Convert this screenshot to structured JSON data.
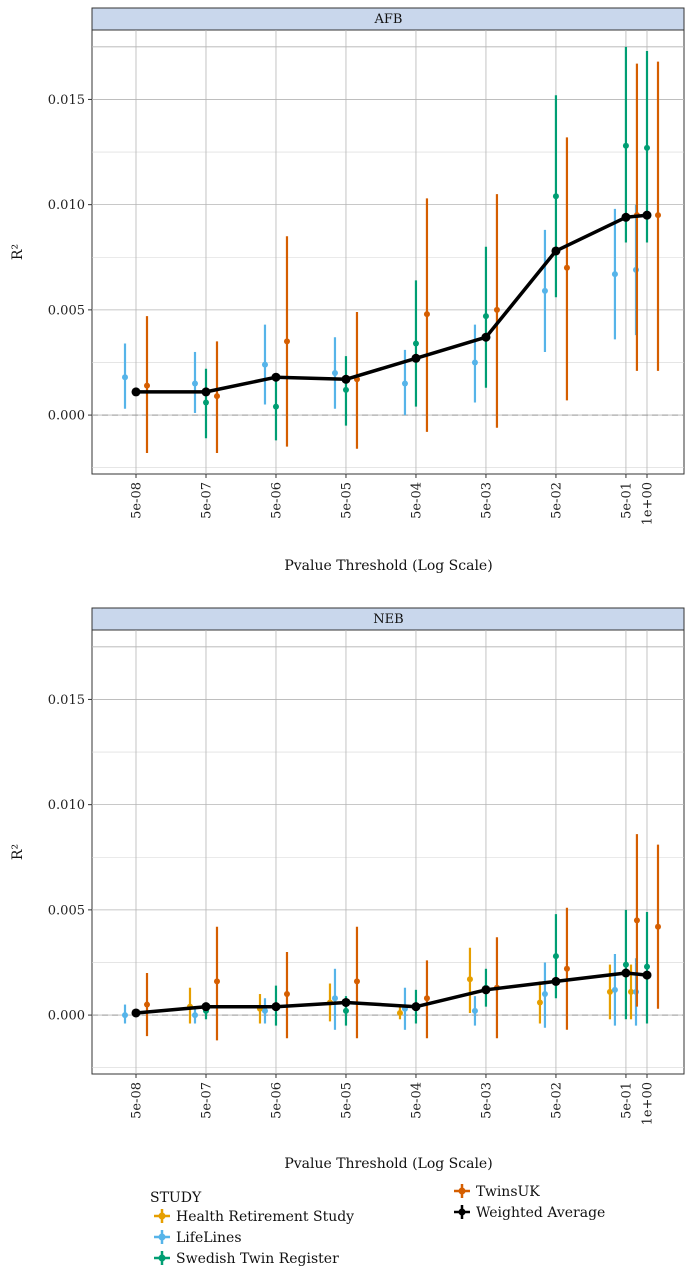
{
  "legend": {
    "title": "STUDY",
    "items": [
      {
        "label": "Health Retirement Study",
        "color": "#E69F00"
      },
      {
        "label": "LifeLines",
        "color": "#56B4E9"
      },
      {
        "label": "Swedish Twin Register",
        "color": "#009E73"
      },
      {
        "label": "TwinsUK",
        "color": "#D55E00"
      },
      {
        "label": "Weighted Average",
        "color": "#000000"
      }
    ]
  },
  "chart_data": [
    {
      "type": "line",
      "panel": "AFB",
      "xlabel": "Pvalue Threshold (Log Scale)",
      "ylabel": "R²",
      "x_scale": "log",
      "x_ticks": [
        "5e-08",
        "5e-07",
        "5e-06",
        "5e-05",
        "5e-04",
        "5e-03",
        "5e-02",
        "5e-01",
        "1e+00"
      ],
      "x_tick_values": [
        5e-08,
        5e-07,
        5e-06,
        5e-05,
        0.0005,
        0.005,
        0.05,
        0.5,
        1
      ],
      "y_ticks": [
        "0.000",
        "0.005",
        "0.010",
        "0.015"
      ],
      "y_tick_values": [
        0,
        0.005,
        0.01,
        0.015
      ],
      "ylim": [
        -0.0028,
        0.0183
      ],
      "grid": true,
      "series": [
        {
          "name": "LifeLines",
          "color": "#56B4E9",
          "points": [
            {
              "x": 5e-08,
              "y": 0.0018,
              "lo": 0.0003,
              "hi": 0.0034
            },
            {
              "x": 5e-07,
              "y": 0.0015,
              "lo": 0.0001,
              "hi": 0.003
            },
            {
              "x": 5e-06,
              "y": 0.0024,
              "lo": 0.0005,
              "hi": 0.0043
            },
            {
              "x": 5e-05,
              "y": 0.002,
              "lo": 0.0003,
              "hi": 0.0037
            },
            {
              "x": 0.0005,
              "y": 0.0015,
              "lo": 0.0,
              "hi": 0.0031
            },
            {
              "x": 0.005,
              "y": 0.0025,
              "lo": 0.0006,
              "hi": 0.0043
            },
            {
              "x": 0.05,
              "y": 0.0059,
              "lo": 0.003,
              "hi": 0.0088
            },
            {
              "x": 0.5,
              "y": 0.0067,
              "lo": 0.0036,
              "hi": 0.0098
            },
            {
              "x": 1,
              "y": 0.0069,
              "lo": 0.0038,
              "hi": 0.01
            }
          ]
        },
        {
          "name": "Swedish Twin Register",
          "color": "#009E73",
          "points": [
            {
              "x": 5e-07,
              "y": 0.0006,
              "lo": -0.0011,
              "hi": 0.0022
            },
            {
              "x": 5e-06,
              "y": 0.0004,
              "lo": -0.0012,
              "hi": 0.002
            },
            {
              "x": 5e-05,
              "y": 0.0012,
              "lo": -0.0005,
              "hi": 0.0028
            },
            {
              "x": 0.0005,
              "y": 0.0034,
              "lo": 0.0004,
              "hi": 0.0064
            },
            {
              "x": 0.005,
              "y": 0.0047,
              "lo": 0.0013,
              "hi": 0.008
            },
            {
              "x": 0.05,
              "y": 0.0104,
              "lo": 0.0056,
              "hi": 0.0152
            },
            {
              "x": 0.5,
              "y": 0.0128,
              "lo": 0.0082,
              "hi": 0.0175
            },
            {
              "x": 1,
              "y": 0.0127,
              "lo": 0.0082,
              "hi": 0.0173
            }
          ]
        },
        {
          "name": "TwinsUK",
          "color": "#D55E00",
          "points": [
            {
              "x": 5e-08,
              "y": 0.0014,
              "lo": -0.0018,
              "hi": 0.0047
            },
            {
              "x": 5e-07,
              "y": 0.0009,
              "lo": -0.0018,
              "hi": 0.0035
            },
            {
              "x": 5e-06,
              "y": 0.0035,
              "lo": -0.0015,
              "hi": 0.0085
            },
            {
              "x": 5e-05,
              "y": 0.0017,
              "lo": -0.0016,
              "hi": 0.0049
            },
            {
              "x": 0.0005,
              "y": 0.0048,
              "lo": -0.0008,
              "hi": 0.0103
            },
            {
              "x": 0.005,
              "y": 0.005,
              "lo": -0.0006,
              "hi": 0.0105
            },
            {
              "x": 0.05,
              "y": 0.007,
              "lo": 0.0007,
              "hi": 0.0132
            },
            {
              "x": 0.5,
              "y": 0.0095,
              "lo": 0.0021,
              "hi": 0.0167
            },
            {
              "x": 1,
              "y": 0.0095,
              "lo": 0.0021,
              "hi": 0.0168
            }
          ]
        },
        {
          "name": "Weighted Average",
          "color": "#000000",
          "points": [
            {
              "x": 5e-08,
              "y": 0.0011
            },
            {
              "x": 5e-07,
              "y": 0.0011
            },
            {
              "x": 5e-06,
              "y": 0.0018
            },
            {
              "x": 5e-05,
              "y": 0.0017
            },
            {
              "x": 0.0005,
              "y": 0.0027
            },
            {
              "x": 0.005,
              "y": 0.0037
            },
            {
              "x": 0.05,
              "y": 0.0078
            },
            {
              "x": 0.5,
              "y": 0.0094
            },
            {
              "x": 1,
              "y": 0.0095
            }
          ]
        }
      ]
    },
    {
      "type": "line",
      "panel": "NEB",
      "xlabel": "Pvalue Threshold (Log Scale)",
      "ylabel": "R²",
      "x_scale": "log",
      "x_ticks": [
        "5e-08",
        "5e-07",
        "5e-06",
        "5e-05",
        "5e-04",
        "5e-03",
        "5e-02",
        "5e-01",
        "1e+00"
      ],
      "x_tick_values": [
        5e-08,
        5e-07,
        5e-06,
        5e-05,
        0.0005,
        0.005,
        0.05,
        0.5,
        1
      ],
      "y_ticks": [
        "0.000",
        "0.005",
        "0.010",
        "0.015"
      ],
      "y_tick_values": [
        0,
        0.005,
        0.01,
        0.015
      ],
      "ylim": [
        -0.0028,
        0.0183
      ],
      "grid": true,
      "series": [
        {
          "name": "Health Retirement Study",
          "color": "#E69F00",
          "points": [
            {
              "x": 5e-07,
              "y": 0.0004,
              "lo": -0.0004,
              "hi": 0.0013
            },
            {
              "x": 5e-06,
              "y": 0.0003,
              "lo": -0.0004,
              "hi": 0.001
            },
            {
              "x": 5e-05,
              "y": 0.0006,
              "lo": -0.0003,
              "hi": 0.0015
            },
            {
              "x": 0.0005,
              "y": 0.0001,
              "lo": -0.0002,
              "hi": 0.0004
            },
            {
              "x": 0.005,
              "y": 0.0017,
              "lo": 0.0001,
              "hi": 0.0032
            },
            {
              "x": 0.05,
              "y": 0.0006,
              "lo": -0.0004,
              "hi": 0.0016
            },
            {
              "x": 0.5,
              "y": 0.0011,
              "lo": -0.0002,
              "hi": 0.0024
            },
            {
              "x": 1,
              "y": 0.0011,
              "lo": -0.0002,
              "hi": 0.0024
            }
          ]
        },
        {
          "name": "LifeLines",
          "color": "#56B4E9",
          "points": [
            {
              "x": 5e-08,
              "y": 0.0,
              "lo": -0.0004,
              "hi": 0.0005
            },
            {
              "x": 5e-07,
              "y": 0.0,
              "lo": -0.0004,
              "hi": 0.0004
            },
            {
              "x": 5e-06,
              "y": 0.0002,
              "lo": -0.0004,
              "hi": 0.0008
            },
            {
              "x": 5e-05,
              "y": 0.0008,
              "lo": -0.0007,
              "hi": 0.0022
            },
            {
              "x": 0.0005,
              "y": 0.0003,
              "lo": -0.0007,
              "hi": 0.0013
            },
            {
              "x": 0.005,
              "y": 0.0002,
              "lo": -0.0005,
              "hi": 0.0009
            },
            {
              "x": 0.05,
              "y": 0.001,
              "lo": -0.0006,
              "hi": 0.0025
            },
            {
              "x": 0.5,
              "y": 0.0012,
              "lo": -0.0005,
              "hi": 0.0029
            },
            {
              "x": 1,
              "y": 0.0011,
              "lo": -0.0005,
              "hi": 0.0027
            }
          ]
        },
        {
          "name": "Swedish Twin Register",
          "color": "#009E73",
          "points": [
            {
              "x": 5e-07,
              "y": 0.0002,
              "lo": -0.0002,
              "hi": 0.0006
            },
            {
              "x": 5e-06,
              "y": 0.0004,
              "lo": -0.0005,
              "hi": 0.0014
            },
            {
              "x": 5e-05,
              "y": 0.0002,
              "lo": -0.0005,
              "hi": 0.0009
            },
            {
              "x": 0.0005,
              "y": 0.0004,
              "lo": -0.0004,
              "hi": 0.0012
            },
            {
              "x": 0.005,
              "y": 0.0013,
              "lo": 0.0004,
              "hi": 0.0022
            },
            {
              "x": 0.05,
              "y": 0.0028,
              "lo": 0.0008,
              "hi": 0.0048
            },
            {
              "x": 0.5,
              "y": 0.0024,
              "lo": -0.0002,
              "hi": 0.005
            },
            {
              "x": 1,
              "y": 0.0023,
              "lo": -0.0004,
              "hi": 0.0049
            }
          ]
        },
        {
          "name": "TwinsUK",
          "color": "#D55E00",
          "points": [
            {
              "x": 5e-08,
              "y": 0.0005,
              "lo": -0.001,
              "hi": 0.002
            },
            {
              "x": 5e-07,
              "y": 0.0016,
              "lo": -0.0012,
              "hi": 0.0042
            },
            {
              "x": 5e-06,
              "y": 0.001,
              "lo": -0.0011,
              "hi": 0.003
            },
            {
              "x": 5e-05,
              "y": 0.0016,
              "lo": -0.0011,
              "hi": 0.0042
            },
            {
              "x": 0.0005,
              "y": 0.0008,
              "lo": -0.0011,
              "hi": 0.0026
            },
            {
              "x": 0.005,
              "y": 0.0013,
              "lo": -0.0011,
              "hi": 0.0037
            },
            {
              "x": 0.05,
              "y": 0.0022,
              "lo": -0.0007,
              "hi": 0.0051
            },
            {
              "x": 0.5,
              "y": 0.0045,
              "lo": 0.0004,
              "hi": 0.0086
            },
            {
              "x": 1,
              "y": 0.0042,
              "lo": 0.0003,
              "hi": 0.0081
            }
          ]
        },
        {
          "name": "Weighted Average",
          "color": "#000000",
          "points": [
            {
              "x": 5e-08,
              "y": 0.0001
            },
            {
              "x": 5e-07,
              "y": 0.0004
            },
            {
              "x": 5e-06,
              "y": 0.0004
            },
            {
              "x": 5e-05,
              "y": 0.0006
            },
            {
              "x": 0.0005,
              "y": 0.0004
            },
            {
              "x": 0.005,
              "y": 0.0012
            },
            {
              "x": 0.05,
              "y": 0.0016
            },
            {
              "x": 0.5,
              "y": 0.002
            },
            {
              "x": 1,
              "y": 0.0019
            }
          ]
        }
      ]
    }
  ]
}
